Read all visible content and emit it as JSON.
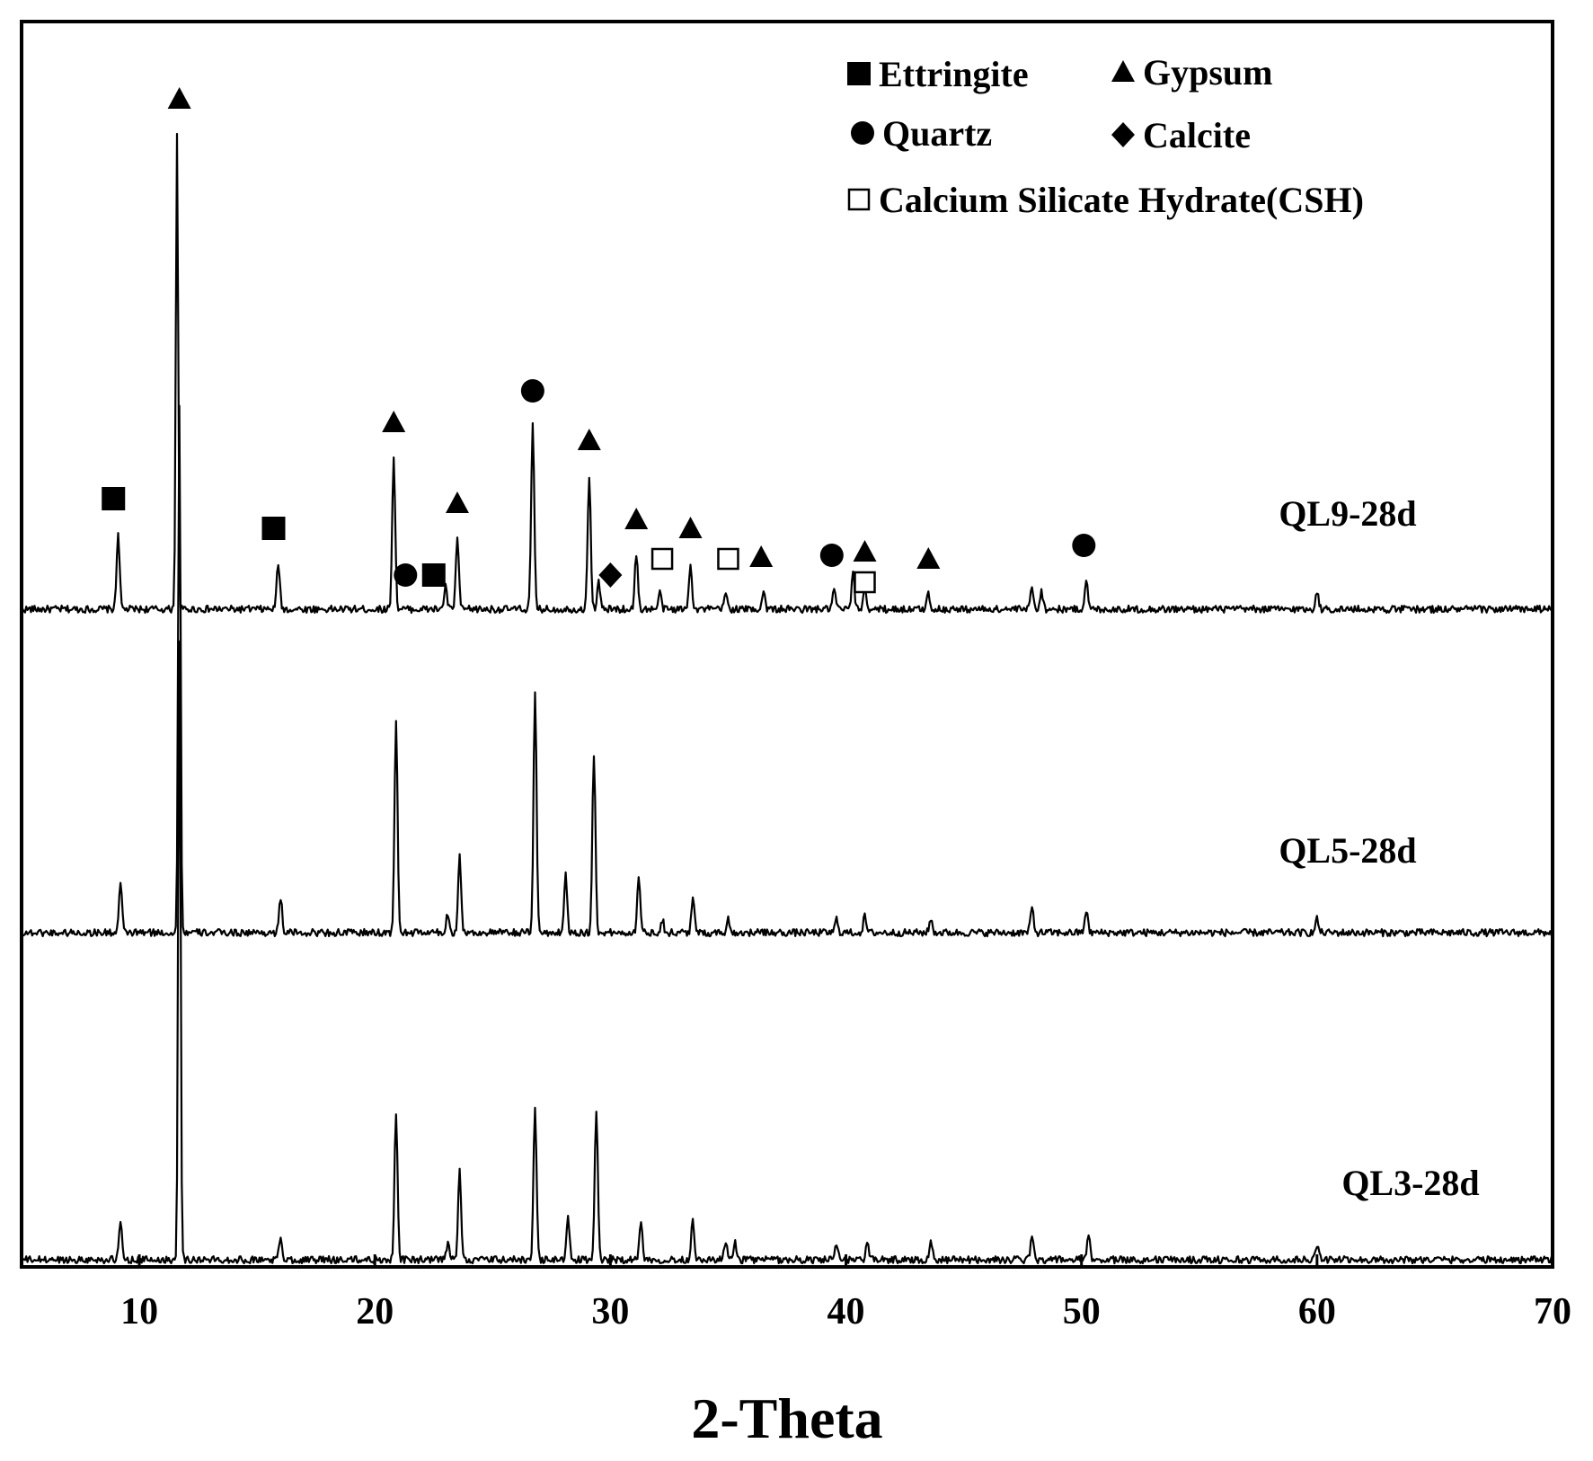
{
  "chart_data": {
    "type": "line",
    "xlabel": "2-Theta",
    "xlim": [
      5,
      70
    ],
    "xticks": [
      10,
      20,
      30,
      40,
      50,
      60,
      70
    ],
    "ylabel": "",
    "y_ticks_shown": false,
    "grid": false,
    "legend_position": "top-right",
    "legend": [
      {
        "marker": "filled-square",
        "label": "Ettringite"
      },
      {
        "marker": "filled-triangle",
        "label": "Gypsum"
      },
      {
        "marker": "filled-circle",
        "label": "Quartz"
      },
      {
        "marker": "filled-diamond",
        "label": "Calcite"
      },
      {
        "marker": "open-square",
        "label": "Calcium Silicate Hydrate(CSH)"
      }
    ],
    "series": [
      {
        "name": "QL9-28d",
        "peaks": [
          [
            9.1,
            85
          ],
          [
            11.6,
            530
          ],
          [
            15.9,
            52
          ],
          [
            20.8,
            170
          ],
          [
            23.0,
            25
          ],
          [
            23.5,
            80
          ],
          [
            26.7,
            205
          ],
          [
            29.1,
            150
          ],
          [
            29.5,
            30
          ],
          [
            31.1,
            62
          ],
          [
            32.1,
            18
          ],
          [
            33.4,
            52
          ],
          [
            34.9,
            18
          ],
          [
            36.5,
            20
          ],
          [
            39.5,
            22
          ],
          [
            40.3,
            38
          ],
          [
            40.8,
            24
          ],
          [
            43.5,
            18
          ],
          [
            47.9,
            25
          ],
          [
            48.3,
            20
          ],
          [
            50.2,
            33
          ],
          [
            60.0,
            20
          ]
        ]
      },
      {
        "name": "QL5-28d",
        "peaks": [
          [
            9.2,
            55
          ],
          [
            11.7,
            590
          ],
          [
            16.0,
            38
          ],
          [
            20.9,
            235
          ],
          [
            23.1,
            22
          ],
          [
            23.6,
            85
          ],
          [
            26.8,
            270
          ],
          [
            28.1,
            65
          ],
          [
            29.3,
            200
          ],
          [
            31.2,
            62
          ],
          [
            32.2,
            15
          ],
          [
            33.5,
            38
          ],
          [
            35.0,
            15
          ],
          [
            39.6,
            15
          ],
          [
            40.8,
            18
          ],
          [
            43.6,
            15
          ],
          [
            47.9,
            28
          ],
          [
            50.2,
            25
          ],
          [
            60.0,
            15
          ]
        ]
      },
      {
        "name": "QL3-28d",
        "peaks": [
          [
            9.2,
            42
          ],
          [
            11.7,
            690
          ],
          [
            16.0,
            25
          ],
          [
            20.9,
            165
          ],
          [
            23.1,
            18
          ],
          [
            23.6,
            100
          ],
          [
            26.8,
            170
          ],
          [
            28.2,
            45
          ],
          [
            29.4,
            165
          ],
          [
            31.3,
            45
          ],
          [
            33.5,
            45
          ],
          [
            34.9,
            20
          ],
          [
            35.3,
            18
          ],
          [
            39.6,
            15
          ],
          [
            40.9,
            20
          ],
          [
            43.6,
            22
          ],
          [
            47.9,
            25
          ],
          [
            50.3,
            25
          ],
          [
            60.0,
            18
          ]
        ]
      }
    ],
    "annotations": [
      {
        "marker": "filled-triangle",
        "x": 11.7,
        "over": "QL9-28d"
      },
      {
        "marker": "filled-square",
        "x": 8.9,
        "over": "QL9-28d"
      },
      {
        "marker": "filled-square",
        "x": 15.7,
        "over": "QL9-28d"
      },
      {
        "marker": "filled-triangle",
        "x": 20.8,
        "over": "QL9-28d"
      },
      {
        "marker": "filled-circle",
        "x": 21.3,
        "over": "QL9-28d"
      },
      {
        "marker": "filled-square",
        "x": 22.5,
        "over": "QL9-28d"
      },
      {
        "marker": "filled-triangle",
        "x": 23.5,
        "over": "QL9-28d"
      },
      {
        "marker": "filled-circle",
        "x": 26.7,
        "over": "QL9-28d"
      },
      {
        "marker": "filled-triangle",
        "x": 29.1,
        "over": "QL9-28d"
      },
      {
        "marker": "filled-diamond",
        "x": 30.0,
        "over": "QL9-28d"
      },
      {
        "marker": "filled-triangle",
        "x": 31.1,
        "over": "QL9-28d"
      },
      {
        "marker": "open-square",
        "x": 32.2,
        "over": "QL9-28d"
      },
      {
        "marker": "filled-triangle",
        "x": 33.4,
        "over": "QL9-28d"
      },
      {
        "marker": "open-square",
        "x": 35.0,
        "over": "QL9-28d"
      },
      {
        "marker": "filled-triangle",
        "x": 36.4,
        "over": "QL9-28d"
      },
      {
        "marker": "filled-circle",
        "x": 39.4,
        "over": "QL9-28d"
      },
      {
        "marker": "filled-triangle",
        "x": 40.8,
        "over": "QL9-28d"
      },
      {
        "marker": "open-square",
        "x": 40.8,
        "over": "QL9-28d"
      },
      {
        "marker": "filled-triangle",
        "x": 43.5,
        "over": "QL9-28d"
      },
      {
        "marker": "filled-circle",
        "x": 50.1,
        "over": "QL9-28d"
      }
    ]
  }
}
